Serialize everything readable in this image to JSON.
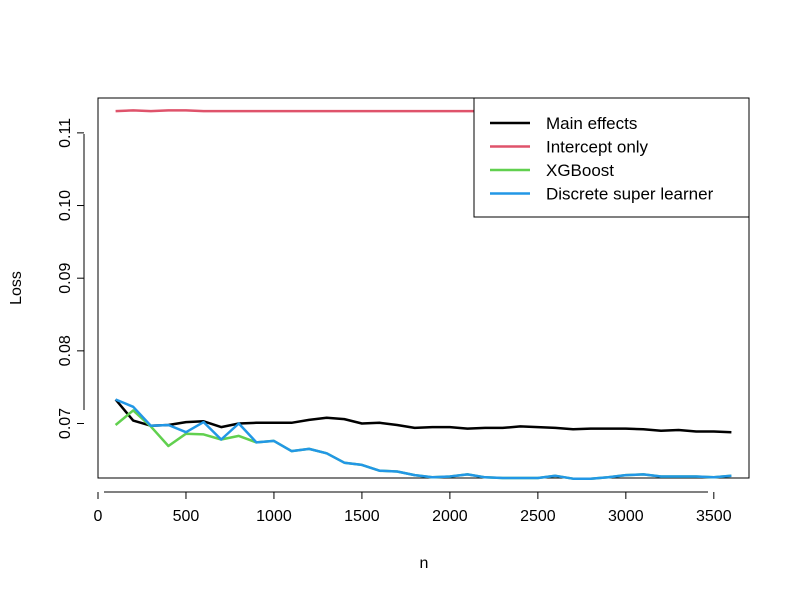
{
  "chart_data": {
    "type": "line",
    "title": "",
    "xlabel": "n",
    "ylabel": "Loss",
    "xlim": [
      0,
      3700
    ],
    "ylim": [
      0.0625,
      0.1148
    ],
    "x_ticks": [
      0,
      500,
      1000,
      1500,
      2000,
      2500,
      3000,
      3500
    ],
    "x_tick_labels": [
      "0",
      "500",
      "1000",
      "1500",
      "2000",
      "2500",
      "3000",
      "3500"
    ],
    "y_ticks": [
      0.07,
      0.08,
      0.09,
      0.1,
      0.11
    ],
    "y_tick_labels": [
      "0.07",
      "0.08",
      "0.09",
      "0.10",
      "0.11"
    ],
    "grid": false,
    "legend_position": "top-right",
    "x": [
      100,
      200,
      300,
      400,
      500,
      600,
      700,
      800,
      900,
      1000,
      1100,
      1200,
      1300,
      1400,
      1500,
      1600,
      1700,
      1800,
      1900,
      2000,
      2100,
      2200,
      2300,
      2400,
      2500,
      2600,
      2700,
      2800,
      2900,
      3000,
      3100,
      3200,
      3300,
      3400,
      3500,
      3600
    ],
    "series": [
      {
        "name": "Main effects",
        "color": "#000000",
        "values": [
          0.0733,
          0.0704,
          0.0697,
          0.0698,
          0.0702,
          0.0703,
          0.0695,
          0.07,
          0.0701,
          0.0701,
          0.0701,
          0.0705,
          0.0708,
          0.0706,
          0.07,
          0.0701,
          0.0698,
          0.0694,
          0.0695,
          0.0695,
          0.0693,
          0.0694,
          0.0694,
          0.0696,
          0.0695,
          0.0694,
          0.0692,
          0.0693,
          0.0693,
          0.0693,
          0.0692,
          0.069,
          0.0691,
          0.0689,
          0.0689,
          0.0688
        ]
      },
      {
        "name": "Intercept only",
        "color": "#DF536B",
        "values": [
          0.113,
          0.1131,
          0.113,
          0.1131,
          0.1131,
          0.113,
          0.113,
          0.113,
          0.113,
          0.113,
          0.113,
          0.113,
          0.113,
          0.113,
          0.113,
          0.113,
          0.113,
          0.113,
          0.113,
          0.113,
          0.113,
          0.113,
          0.113,
          0.113,
          0.113,
          0.113,
          0.113,
          0.113,
          0.113,
          0.113,
          0.113,
          0.113,
          0.113,
          0.113,
          0.113,
          0.113
        ]
      },
      {
        "name": "XGBoost",
        "color": "#61D04F",
        "values": [
          0.0698,
          0.0718,
          0.0696,
          0.0669,
          0.0686,
          0.0685,
          0.0678,
          0.0683,
          0.0674,
          0.0676,
          0.0662,
          0.0665,
          0.0659,
          0.0646,
          0.0643,
          0.0635,
          0.0634,
          0.0629,
          0.0626,
          0.0627,
          0.063,
          0.0626,
          0.0625,
          0.0625,
          0.0625,
          0.0628,
          0.0624,
          0.0624,
          0.0626,
          0.0629,
          0.063,
          0.0627,
          0.0627,
          0.0627,
          0.0626,
          0.0628
        ]
      },
      {
        "name": "Discrete super learner",
        "color": "#2297E6",
        "values": [
          0.0733,
          0.0723,
          0.0697,
          0.0698,
          0.0688,
          0.0702,
          0.0678,
          0.07,
          0.0674,
          0.0676,
          0.0662,
          0.0665,
          0.0659,
          0.0646,
          0.0643,
          0.0635,
          0.0634,
          0.0629,
          0.0626,
          0.0627,
          0.063,
          0.0626,
          0.0625,
          0.0625,
          0.0625,
          0.0628,
          0.0624,
          0.0624,
          0.0626,
          0.0629,
          0.063,
          0.0627,
          0.0627,
          0.0627,
          0.0626,
          0.0628
        ]
      }
    ]
  }
}
